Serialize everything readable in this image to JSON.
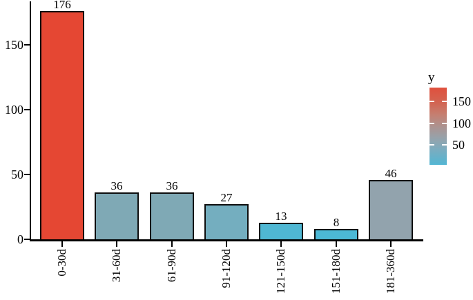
{
  "chart_data": {
    "type": "bar",
    "title": "",
    "xlabel": "",
    "ylabel": "",
    "categories": [
      "0-30d",
      "31-60d",
      "61-90d",
      "91-120d",
      "121-150d",
      "151-180d",
      "181-360d"
    ],
    "values": [
      176,
      36,
      36,
      27,
      13,
      8,
      46
    ],
    "value_labels": [
      "176",
      "36",
      "36",
      "27",
      "13",
      "8",
      "46"
    ],
    "bar_colors": [
      "#E54733",
      "#7FA9B5",
      "#7FA9B5",
      "#74AEBF",
      "#4FB7D3",
      "#4CB8D5",
      "#92A3AD"
    ],
    "bar_border_color": "#0d0d0d",
    "axis_color": "#000000",
    "ylim": [
      0,
      185
    ],
    "yticks": [
      0,
      50,
      100,
      150
    ],
    "ytick_labels": [
      "0",
      "50",
      "100",
      "150"
    ],
    "grid": false,
    "legend": {
      "title": "y",
      "position": "right",
      "type": "color-gradient",
      "tick_labels": [
        "150",
        "100",
        "50"
      ],
      "tick_values": [
        150,
        100,
        50
      ],
      "gradient_top_to_bottom": [
        {
          "color": "#E0503D",
          "pos": 0
        },
        {
          "color": "#D26553",
          "pos": 20
        },
        {
          "color": "#C57F71",
          "pos": 35
        },
        {
          "color": "#AD928F",
          "pos": 50
        },
        {
          "color": "#97A2AA",
          "pos": 65
        },
        {
          "color": "#7BACBF",
          "pos": 80
        },
        {
          "color": "#53B6D3",
          "pos": 100
        }
      ]
    }
  }
}
